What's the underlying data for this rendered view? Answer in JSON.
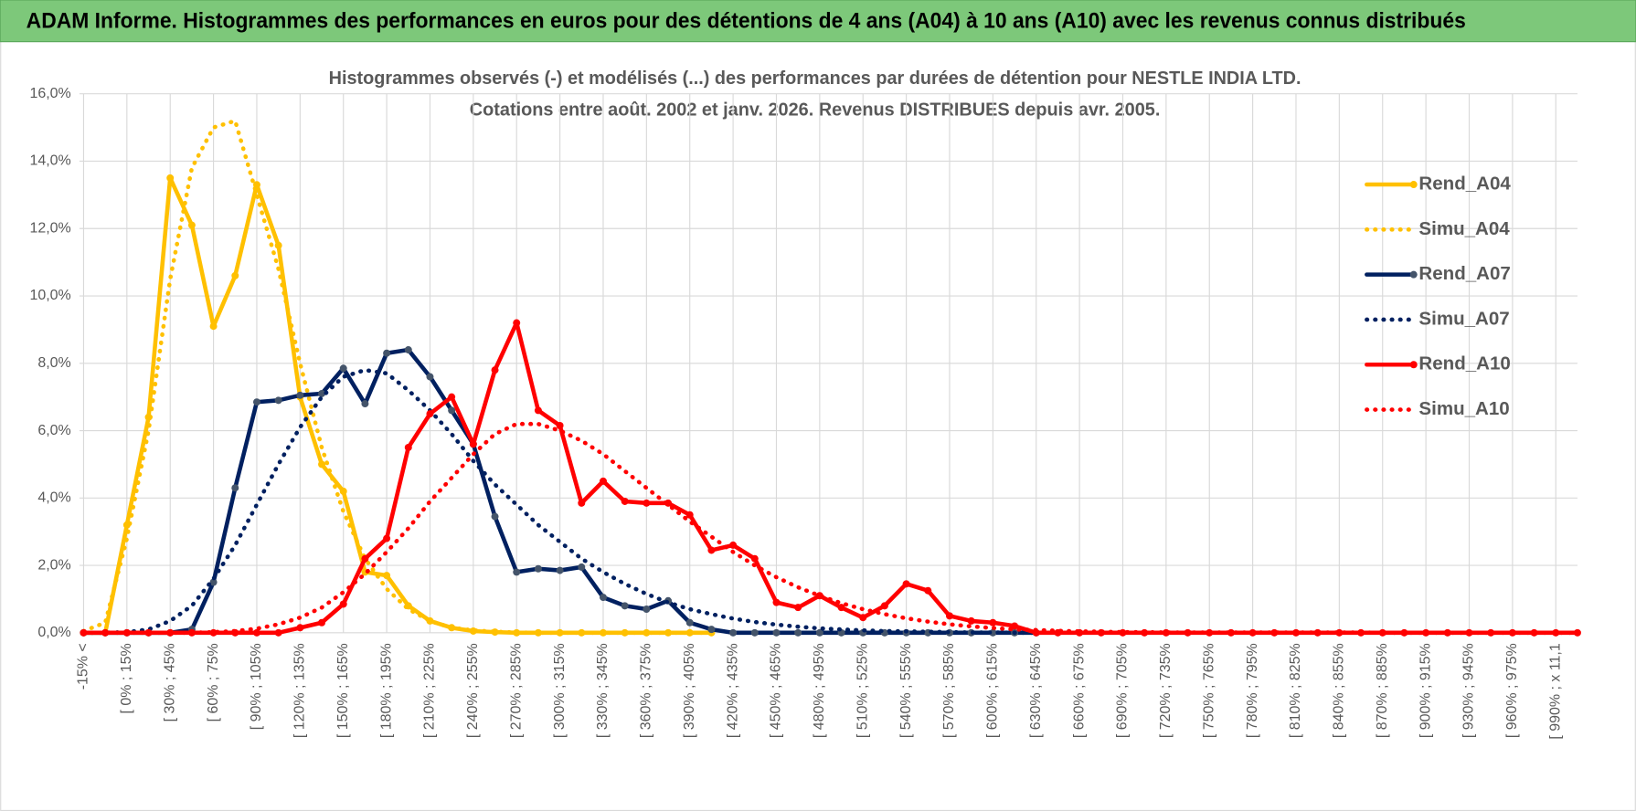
{
  "header": {
    "title": "ADAM Informe. Histogrammes des performances en euros pour des détentions de 4 ans (A04) à 10 ans (A10) avec les revenus connus distribués"
  },
  "chart_data": {
    "type": "line",
    "title": "Histogrammes observés (-) et modélisés (...) des performances par durées de détention pour NESTLE INDIA LTD.",
    "subtitle": "Cotations entre août. 2002 et janv. 2026. Revenus DISTRIBUES depuis avr. 2005.",
    "categories": [
      "-15% <",
      null,
      "[ 0% ; 15%",
      null,
      "[ 30% ; 45%",
      null,
      "[ 60% ; 75%",
      null,
      "[ 90% ; 105%",
      null,
      "[ 120% ; 135%",
      null,
      "[ 150% ; 165%",
      null,
      "[ 180% ; 195%",
      null,
      "[ 210% ; 225%",
      null,
      "[ 240% ; 255%",
      null,
      "[ 270% ; 285%",
      null,
      "[ 300% ; 315%",
      null,
      "[ 330% ; 345%",
      null,
      "[ 360% ; 375%",
      null,
      "[ 390% ; 405%",
      null,
      "[ 420% ; 435%",
      null,
      "[ 450% ; 465%",
      null,
      "[ 480% ; 495%",
      null,
      "[ 510% ; 525%",
      null,
      "[ 540% ; 555%",
      null,
      "[ 570% ; 585%",
      null,
      "[ 600% ; 615%",
      null,
      "[ 630% ; 645%",
      null,
      "[ 660% ; 675%",
      null,
      "[ 690% ; 705%",
      null,
      "[ 720% ; 735%",
      null,
      "[ 750% ; 765%",
      null,
      "[ 780% ; 795%",
      null,
      "[ 810% ; 825%",
      null,
      "[ 840% ; 855%",
      null,
      "[ 870% ; 885%",
      null,
      "[ 900% ; 915%",
      null,
      "[ 930% ; 945%",
      null,
      "[ 960% ; 975%",
      null,
      "[ 990% ; x 11,1",
      null
    ],
    "series": [
      {
        "name": "Rend_A04",
        "color": "#FFC000",
        "dash": false,
        "markers": true,
        "values": [
          0,
          0,
          3.2,
          6.4,
          13.5,
          12.1,
          9.1,
          10.6,
          13.3,
          11.5,
          7.0,
          5.0,
          4.2,
          1.8,
          1.7,
          0.8,
          0.35,
          0.15,
          0.05,
          0.02,
          0,
          0,
          0,
          0,
          0,
          0,
          0,
          0,
          0,
          0,
          null,
          null,
          null,
          null,
          null,
          null,
          null,
          null,
          null,
          null,
          null,
          null,
          null,
          null,
          null,
          null,
          null,
          null,
          null,
          null,
          null,
          null,
          null,
          null,
          null,
          null,
          null,
          null,
          null,
          null,
          null,
          null,
          null,
          null,
          null,
          null,
          null,
          null,
          null,
          null
        ]
      },
      {
        "name": "Simu_A04",
        "color": "#FFC000",
        "dash": true,
        "markers": false,
        "values": [
          0.05,
          0.3,
          2.8,
          6.0,
          10.5,
          13.8,
          15.0,
          15.2,
          13.0,
          10.8,
          8.0,
          5.5,
          3.6,
          2.2,
          1.3,
          0.7,
          0.35,
          0.15,
          0.07,
          0.03,
          0.01,
          0,
          0,
          0,
          0,
          0,
          0,
          0,
          0,
          0,
          null,
          null,
          null,
          null,
          null,
          null,
          null,
          null,
          null,
          null,
          null,
          null,
          null,
          null,
          null,
          null,
          null,
          null,
          null,
          null,
          null,
          null,
          null,
          null,
          null,
          null,
          null,
          null,
          null,
          null,
          null,
          null,
          null,
          null,
          null,
          null,
          null,
          null,
          null,
          null
        ]
      },
      {
        "name": "Rend_A07",
        "color": "#002060",
        "dash": false,
        "markers": true,
        "values": [
          0,
          0,
          0,
          0,
          0,
          0.1,
          1.5,
          4.3,
          6.85,
          6.9,
          7.05,
          7.1,
          7.85,
          6.8,
          8.3,
          8.4,
          7.6,
          6.6,
          5.6,
          3.45,
          1.8,
          1.9,
          1.85,
          1.95,
          1.05,
          0.8,
          0.7,
          0.95,
          0.3,
          0.1,
          0,
          0,
          0,
          0,
          0,
          0,
          0,
          0,
          0,
          0,
          0,
          0,
          0,
          0,
          0,
          null,
          null,
          null,
          null,
          null,
          null,
          null,
          null,
          null,
          null,
          null,
          null,
          null,
          null,
          null,
          null,
          null,
          null,
          null,
          null,
          null,
          null,
          null,
          null,
          null
        ]
      },
      {
        "name": "Simu_A07",
        "color": "#002060",
        "dash": true,
        "markers": false,
        "values": [
          0,
          0,
          0.02,
          0.1,
          0.35,
          0.8,
          1.6,
          2.6,
          3.8,
          5.0,
          6.1,
          7.0,
          7.6,
          7.8,
          7.7,
          7.2,
          6.6,
          5.9,
          5.1,
          4.4,
          3.8,
          3.2,
          2.7,
          2.2,
          1.8,
          1.45,
          1.15,
          0.9,
          0.7,
          0.55,
          0.42,
          0.32,
          0.24,
          0.18,
          0.13,
          0.1,
          0.07,
          0.05,
          0.04,
          0.03,
          0.02,
          0.01,
          0.01,
          0,
          0,
          null,
          null,
          null,
          null,
          null,
          null,
          null,
          null,
          null,
          null,
          null,
          null,
          null,
          null,
          null,
          null,
          null,
          null,
          null,
          null,
          null,
          null,
          null,
          null,
          null
        ]
      },
      {
        "name": "Rend_A10",
        "color": "#FF0000",
        "dash": false,
        "markers": true,
        "values": [
          0,
          0,
          0,
          0,
          0,
          0,
          0,
          0,
          0,
          0,
          0.15,
          0.3,
          0.85,
          2.2,
          2.8,
          5.5,
          6.5,
          7.0,
          5.6,
          7.8,
          9.2,
          6.6,
          6.15,
          3.85,
          4.5,
          3.9,
          3.85,
          3.85,
          3.5,
          2.45,
          2.6,
          2.2,
          0.9,
          0.75,
          1.1,
          0.75,
          0.45,
          0.8,
          1.45,
          1.25,
          0.5,
          0.35,
          0.3,
          0.2,
          0,
          0,
          0,
          0,
          0,
          0,
          0,
          0,
          0,
          0,
          0,
          0,
          0,
          0,
          0,
          0,
          0,
          0,
          0,
          0,
          0,
          0,
          0,
          0,
          0,
          0
        ]
      },
      {
        "name": "Simu_A10",
        "color": "#FF0000",
        "dash": true,
        "markers": false,
        "values": [
          0,
          0,
          0,
          0,
          0,
          0,
          0.02,
          0.05,
          0.12,
          0.25,
          0.45,
          0.75,
          1.2,
          1.75,
          2.4,
          3.1,
          3.9,
          4.6,
          5.3,
          5.9,
          6.2,
          6.2,
          6.0,
          5.7,
          5.3,
          4.8,
          4.3,
          3.8,
          3.3,
          2.85,
          2.4,
          2.0,
          1.65,
          1.35,
          1.1,
          0.88,
          0.7,
          0.55,
          0.43,
          0.33,
          0.25,
          0.19,
          0.14,
          0.1,
          0.08,
          0.06,
          0.04,
          0.03,
          0.02,
          0.02,
          0.01,
          0.01,
          0.01,
          0.01,
          0.01,
          0.01,
          0.01,
          0.01,
          0.01,
          0.01,
          0,
          0,
          0,
          0,
          0,
          0,
          0,
          0,
          0,
          0
        ]
      }
    ],
    "ylim": [
      0,
      16
    ],
    "yticks": [
      {
        "value": 0,
        "label": "0,0%"
      },
      {
        "value": 2,
        "label": "2,0%"
      },
      {
        "value": 4,
        "label": "4,0%"
      },
      {
        "value": 6,
        "label": "6,0%"
      },
      {
        "value": 8,
        "label": "8,0%"
      },
      {
        "value": 10,
        "label": "10,0%"
      },
      {
        "value": 12,
        "label": "12,0%"
      },
      {
        "value": 14,
        "label": "14,0%"
      },
      {
        "value": 16,
        "label": "16,0%"
      }
    ],
    "grid": true,
    "legend": "right"
  }
}
